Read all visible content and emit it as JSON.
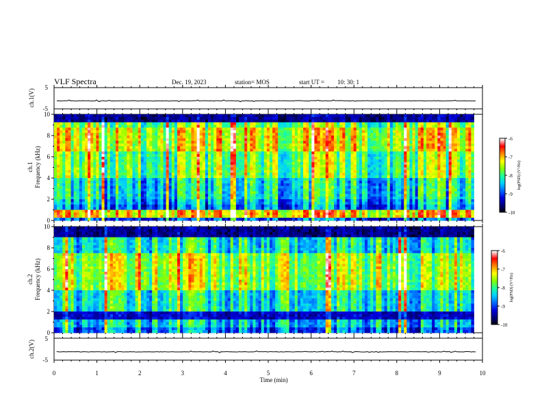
{
  "header": {
    "title": "VLF Spectra",
    "date": "Dec. 19, 2023",
    "station": "station= MOS",
    "start_label": "start  UT =",
    "start_time": "10: 30: 1"
  },
  "colors": {
    "cmap": [
      "#000000",
      "#00007a",
      "#0000dd",
      "#0068ff",
      "#00d0ff",
      "#1eff9a",
      "#88ff00",
      "#ffff00",
      "#ff8800",
      "#ff0000",
      "#ffffff"
    ]
  },
  "chart_data": [
    {
      "panel": "ch1-waveform",
      "type": "line",
      "ylabel": "ch.1(V)",
      "ylim": [
        -5,
        5
      ],
      "yticks": [
        "5",
        "-5"
      ],
      "baseline": -1.2,
      "xlim": [
        0,
        10
      ]
    },
    {
      "panel": "ch1-spectrogram",
      "type": "heatmap",
      "ylabel": "ch.1\nFrequency (kHz)",
      "ylim": [
        0,
        10
      ],
      "yticks": [
        "0",
        "2",
        "4",
        "6",
        "8",
        "10"
      ],
      "xlim": [
        0,
        10
      ],
      "data_end_min": 9.8,
      "bands": [
        {
          "from": 0,
          "to": 0.3,
          "level": 0.25
        },
        {
          "from": 0.3,
          "to": 1.0,
          "level": 0.72
        },
        {
          "from": 1.0,
          "to": 1.4,
          "level": 0.3
        },
        {
          "from": 1.4,
          "to": 2.0,
          "level": 0.35
        },
        {
          "from": 2.0,
          "to": 4.0,
          "level": 0.42
        },
        {
          "from": 4.0,
          "to": 6.5,
          "level": 0.55
        },
        {
          "from": 6.5,
          "to": 8.8,
          "level": 0.66
        },
        {
          "from": 8.8,
          "to": 9.2,
          "level": 0.55
        },
        {
          "from": 9.2,
          "to": 10,
          "level": 0.12
        }
      ],
      "colorbar": {
        "label": "log(PSD) (V²/Hz)",
        "ticks": [
          "-6",
          "-7",
          "-8",
          "-9",
          "-10"
        ],
        "range": [
          -10,
          -6
        ]
      }
    },
    {
      "panel": "ch2-spectrogram",
      "type": "heatmap",
      "ylabel": "ch.2\nFrequency (kHz)",
      "ylim": [
        0,
        10
      ],
      "yticks": [
        "0",
        "2",
        "4",
        "6",
        "8",
        "10"
      ],
      "xlim": [
        0,
        10
      ],
      "data_end_min": 9.8,
      "bands": [
        {
          "from": 0,
          "to": 0.5,
          "level": 0.3
        },
        {
          "from": 0.5,
          "to": 1.2,
          "level": 0.4
        },
        {
          "from": 1.2,
          "to": 2.0,
          "level": 0.18
        },
        {
          "from": 2.0,
          "to": 4.0,
          "level": 0.45
        },
        {
          "from": 4.0,
          "to": 7.5,
          "level": 0.62
        },
        {
          "from": 7.5,
          "to": 9.0,
          "level": 0.45
        },
        {
          "from": 9.0,
          "to": 10,
          "level": 0.12
        }
      ],
      "colorbar": {
        "label": "log(PSD) (V²/Hz)",
        "ticks": [
          "-6",
          "-7",
          "-8",
          "-9",
          "-10"
        ],
        "range": [
          -10,
          -6
        ]
      }
    },
    {
      "panel": "ch2-waveform",
      "type": "line",
      "ylabel": "ch.2(V)",
      "ylim": [
        -5,
        5
      ],
      "yticks": [
        "5",
        "-5"
      ],
      "baseline": -1.2,
      "xlim": [
        0,
        10
      ]
    }
  ],
  "xaxis": {
    "label": "Time  (min)",
    "ticks": [
      "0",
      "1",
      "2",
      "3",
      "4",
      "5",
      "6",
      "7",
      "8",
      "9",
      "10"
    ]
  }
}
